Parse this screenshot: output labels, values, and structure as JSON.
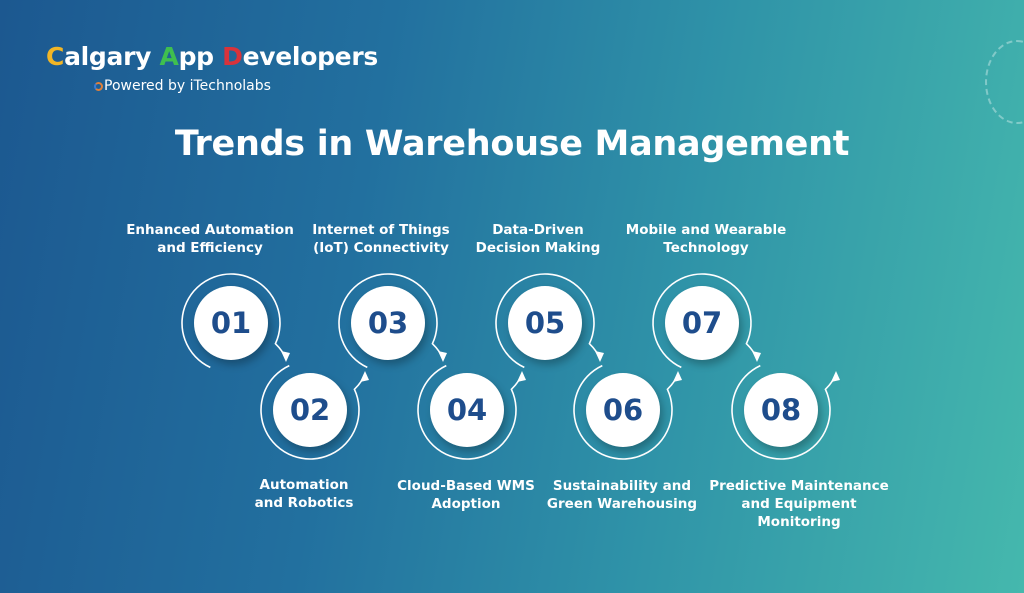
{
  "logo": {
    "brand_c": "C",
    "brand_1": "algary ",
    "brand_a": "A",
    "brand_2": "pp ",
    "brand_d": "D",
    "brand_3": "evelopers",
    "powered": "Powered by iTechnolabs"
  },
  "title": "Trends in Warehouse Management",
  "colors": {
    "number": "#1e4d8c",
    "circle": "#ffffff",
    "bg_left": "#1c5890",
    "bg_right": "#45b8ad"
  },
  "steps": [
    {
      "num": "01",
      "label": "Enhanced Automation\nand Efficiency"
    },
    {
      "num": "02",
      "label": "Automation\nand Robotics"
    },
    {
      "num": "03",
      "label": "Internet of Things\n(IoT) Connectivity"
    },
    {
      "num": "04",
      "label": "Cloud-Based WMS\nAdoption"
    },
    {
      "num": "05",
      "label": "Data-Driven\nDecision Making"
    },
    {
      "num": "06",
      "label": "Sustainability and\nGreen Warehousing"
    },
    {
      "num": "07",
      "label": "Mobile and Wearable\nTechnology"
    },
    {
      "num": "08",
      "label": "Predictive Maintenance\nand Equipment Monitoring"
    }
  ]
}
